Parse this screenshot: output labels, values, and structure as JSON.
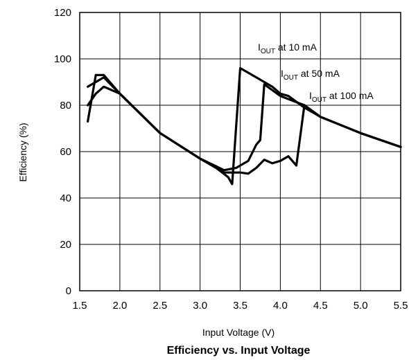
{
  "chart_data": {
    "type": "line",
    "title": "Efficiency vs. Input Voltage",
    "xlabel": "Input Voltage (V)",
    "ylabel": "Efficiency (%)",
    "xlim": [
      1.5,
      5.5
    ],
    "ylim": [
      0,
      120
    ],
    "x_ticks": [
      "1.5",
      "2.0",
      "2.5",
      "3.0",
      "3.5",
      "4.0",
      "4.5",
      "5.0",
      "5.5"
    ],
    "y_ticks": [
      "0",
      "20",
      "40",
      "60",
      "80",
      "100",
      "120"
    ],
    "grid": true,
    "series": [
      {
        "name": "IOUT at 10 mA",
        "annotation": {
          "main": "I",
          "sub": "OUT",
          "rest": " at 10 mA"
        },
        "points": [
          [
            1.6,
            73
          ],
          [
            1.7,
            93
          ],
          [
            1.8,
            93
          ],
          [
            2.0,
            85
          ],
          [
            2.5,
            68
          ],
          [
            3.0,
            57
          ],
          [
            3.3,
            51
          ],
          [
            3.5,
            51
          ],
          [
            3.6,
            50.5
          ],
          [
            3.7,
            53
          ],
          [
            3.8,
            56.5
          ],
          [
            3.9,
            55
          ],
          [
            4.0,
            56
          ],
          [
            4.1,
            58
          ],
          [
            4.2,
            54
          ],
          [
            4.3,
            80
          ],
          [
            4.5,
            75
          ],
          [
            5.0,
            68
          ],
          [
            5.5,
            62
          ]
        ]
      },
      {
        "name": "IOUT at 50 mA",
        "annotation": {
          "main": "I",
          "sub": "OUT",
          "rest": " at 50 mA"
        },
        "points": [
          [
            1.6,
            80
          ],
          [
            1.7,
            85
          ],
          [
            1.8,
            88
          ],
          [
            2.0,
            85
          ],
          [
            2.5,
            68
          ],
          [
            3.0,
            57
          ],
          [
            3.3,
            52
          ],
          [
            3.45,
            53
          ],
          [
            3.6,
            56
          ],
          [
            3.7,
            63
          ],
          [
            3.75,
            65
          ],
          [
            3.8,
            89
          ],
          [
            4.0,
            84
          ],
          [
            4.3,
            80
          ],
          [
            4.5,
            75
          ],
          [
            5.0,
            68
          ],
          [
            5.5,
            62
          ]
        ]
      },
      {
        "name": "IOUT at 100 mA",
        "annotation": {
          "main": "I",
          "sub": "OUT",
          "rest": " at 100 mA"
        },
        "points": [
          [
            1.6,
            88
          ],
          [
            1.7,
            90
          ],
          [
            1.8,
            92
          ],
          [
            2.0,
            85
          ],
          [
            2.5,
            68
          ],
          [
            3.0,
            57
          ],
          [
            3.2,
            53
          ],
          [
            3.35,
            49
          ],
          [
            3.4,
            46
          ],
          [
            3.5,
            96
          ],
          [
            3.7,
            92
          ],
          [
            3.9,
            88
          ],
          [
            4.0,
            85
          ],
          [
            4.1,
            84
          ],
          [
            4.3,
            79
          ],
          [
            4.5,
            75
          ],
          [
            5.0,
            68
          ],
          [
            5.5,
            62
          ]
        ]
      }
    ]
  }
}
